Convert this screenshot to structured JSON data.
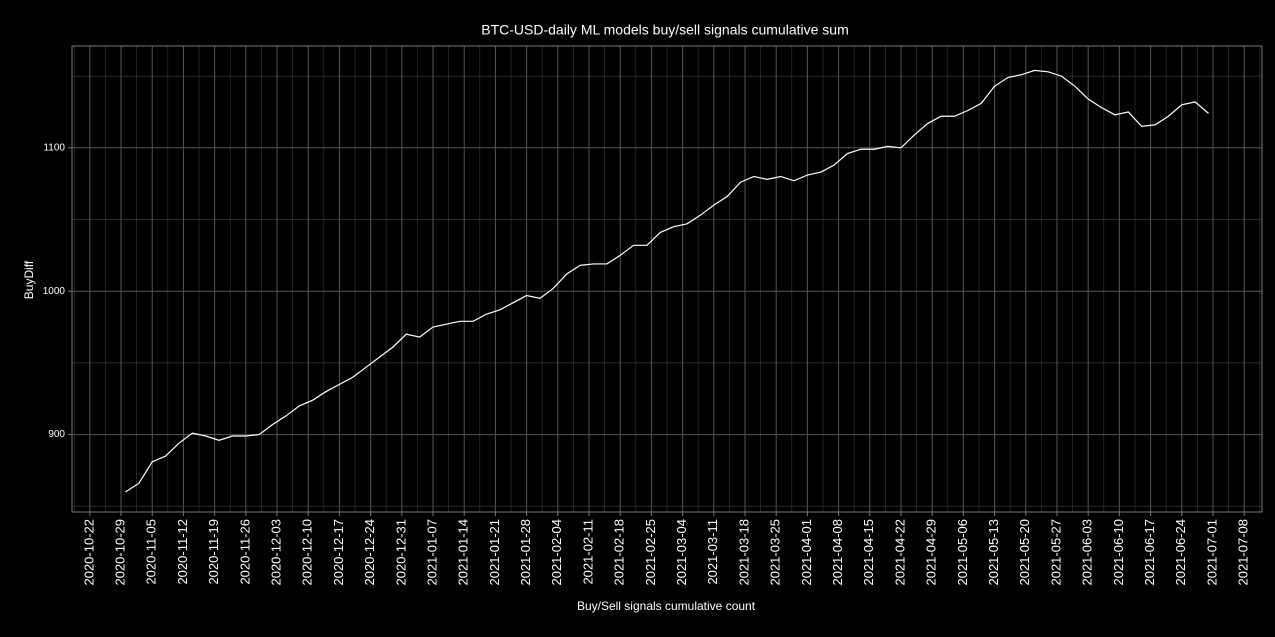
{
  "chart_data": {
    "type": "line",
    "title": "BTC-USD-daily ML models buy/sell signals cumulative sum",
    "xlabel": "Buy/Sell signals cumulative count",
    "ylabel": "BuyDiff",
    "x": [
      "2020-10-30",
      "2020-11-02",
      "2020-11-05",
      "2020-11-08",
      "2020-11-11",
      "2020-11-14",
      "2020-11-17",
      "2020-11-20",
      "2020-11-23",
      "2020-11-26",
      "2020-11-29",
      "2020-12-02",
      "2020-12-05",
      "2020-12-08",
      "2020-12-11",
      "2020-12-14",
      "2020-12-17",
      "2020-12-20",
      "2020-12-23",
      "2020-12-26",
      "2020-12-29",
      "2021-01-01",
      "2021-01-04",
      "2021-01-07",
      "2021-01-10",
      "2021-01-13",
      "2021-01-16",
      "2021-01-19",
      "2021-01-22",
      "2021-01-25",
      "2021-01-28",
      "2021-01-31",
      "2021-02-03",
      "2021-02-06",
      "2021-02-09",
      "2021-02-12",
      "2021-02-15",
      "2021-02-18",
      "2021-02-21",
      "2021-02-24",
      "2021-02-27",
      "2021-03-02",
      "2021-03-05",
      "2021-03-08",
      "2021-03-11",
      "2021-03-14",
      "2021-03-17",
      "2021-03-20",
      "2021-03-23",
      "2021-03-26",
      "2021-03-29",
      "2021-04-01",
      "2021-04-04",
      "2021-04-07",
      "2021-04-10",
      "2021-04-13",
      "2021-04-16",
      "2021-04-19",
      "2021-04-22",
      "2021-04-25",
      "2021-04-28",
      "2021-05-01",
      "2021-05-04",
      "2021-05-07",
      "2021-05-10",
      "2021-05-13",
      "2021-05-16",
      "2021-05-19",
      "2021-05-22",
      "2021-05-25",
      "2021-05-28",
      "2021-05-31",
      "2021-06-03",
      "2021-06-06",
      "2021-06-09",
      "2021-06-12",
      "2021-06-15",
      "2021-06-18",
      "2021-06-21",
      "2021-06-24",
      "2021-06-27",
      "2021-06-30"
    ],
    "series": [
      {
        "name": "BuyDiff",
        "color": "#ffffff",
        "values": [
          860,
          866,
          881,
          885,
          894,
          901,
          899,
          896,
          899,
          899,
          900,
          907,
          913,
          920,
          924,
          930,
          935,
          940,
          947,
          954,
          961,
          970,
          968,
          975,
          977,
          979,
          979,
          984,
          987,
          992,
          997,
          995,
          1002,
          1012,
          1018,
          1019,
          1019,
          1025,
          1032,
          1032,
          1041,
          1045,
          1047,
          1053,
          1060,
          1066,
          1076,
          1080,
          1078,
          1080,
          1077,
          1081,
          1083,
          1088,
          1096,
          1099,
          1099,
          1101,
          1100,
          1109,
          1117,
          1122,
          1122,
          1126,
          1131,
          1143,
          1149,
          1151,
          1154,
          1153,
          1150,
          1143,
          1134,
          1128,
          1123,
          1125,
          1115,
          1116,
          1122,
          1130,
          1132,
          1124
        ]
      }
    ],
    "xlim": [
      "2020-10-18",
      "2021-07-12"
    ],
    "xticks": [
      "2020-10-22",
      "2020-10-29",
      "2020-11-05",
      "2020-11-12",
      "2020-11-19",
      "2020-11-26",
      "2020-12-03",
      "2020-12-10",
      "2020-12-17",
      "2020-12-24",
      "2020-12-31",
      "2021-01-07",
      "2021-01-14",
      "2021-01-21",
      "2021-01-28",
      "2021-02-04",
      "2021-02-11",
      "2021-02-18",
      "2021-02-25",
      "2021-03-04",
      "2021-03-11",
      "2021-03-18",
      "2021-03-25",
      "2021-04-01",
      "2021-04-08",
      "2021-04-15",
      "2021-04-22",
      "2021-04-29",
      "2021-05-06",
      "2021-05-13",
      "2021-05-20",
      "2021-05-27",
      "2021-06-03",
      "2021-06-10",
      "2021-06-17",
      "2021-06-24",
      "2021-07-01",
      "2021-07-08"
    ],
    "ylim": [
      846,
      1171
    ],
    "yticks": [
      900,
      1000,
      1100
    ],
    "grid": true
  }
}
